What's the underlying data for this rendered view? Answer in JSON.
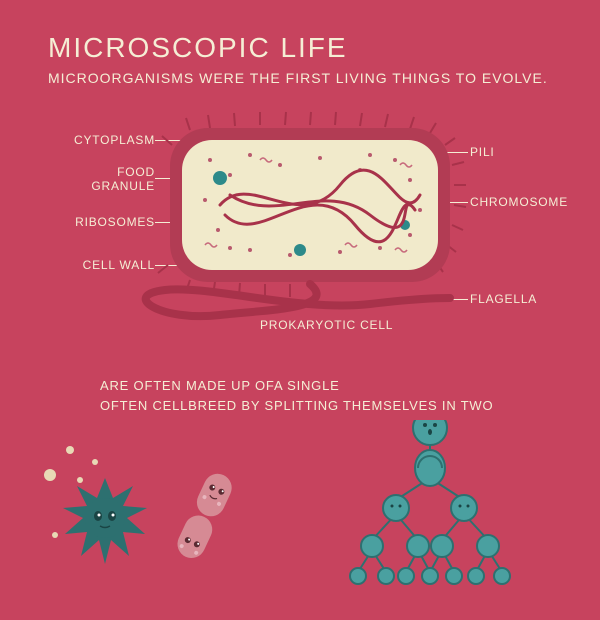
{
  "title": "MICROSCOPIC LIFE",
  "subtitle": "MICROORGANISMS WERE THE FIRST LIVING THINGS TO EVOLVE.",
  "cell": {
    "caption": "PROKARYOTIC CELL",
    "labels_left": [
      "CYTOPLASM",
      "FOOD GRANULE",
      "RIBOSOMES",
      "CELL WALL"
    ],
    "labels_right": [
      "PILI",
      "CHROMOSOME",
      "FLAGELLA"
    ],
    "colors": {
      "wall_outer": "#b23c54",
      "wall_inner": "#f5eed5",
      "cytoplasm": "#eee6c5",
      "chromosome": "#a8324a",
      "granule_teal": "#2d8a8a",
      "ribosome": "#b85a6e",
      "pili": "#a8324a",
      "flagella": "#a8324a"
    }
  },
  "section2": {
    "line1": "ARE OFTEN MADE UP OFA SINGLE",
    "line2": "OFTEN CELLBREED BY SPLITTING THEMSELVES IN TWO"
  },
  "microbes": {
    "spiky_color": "#2d7070",
    "bacillus_color": "#d68a94",
    "tree_color": "#4aa0a0",
    "tree_edge": "#2d7070"
  },
  "background_color": "#c7435e",
  "text_color": "#f5eed5"
}
